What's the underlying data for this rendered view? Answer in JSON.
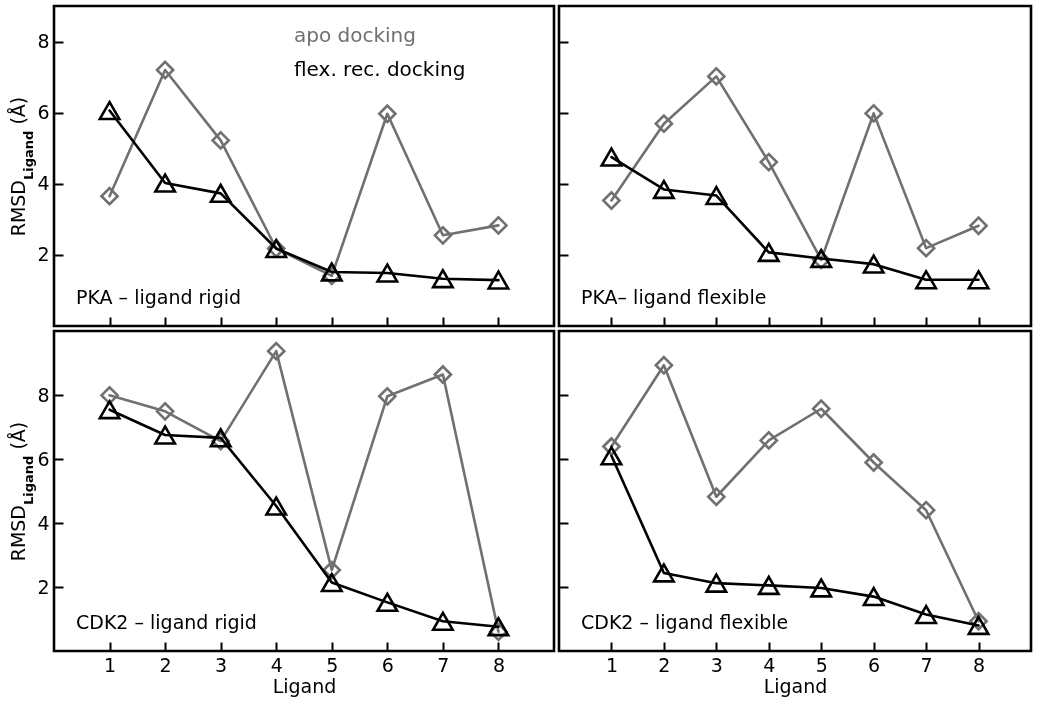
{
  "chart_data": [
    {
      "type": "line",
      "title": "PKA – ligand rigid",
      "ylabel": "RMSD$_{Ligand}$ (Å)",
      "x": [
        1,
        2,
        3,
        4,
        5,
        6,
        7,
        8
      ],
      "xlim": [
        0,
        9
      ],
      "ylim": [
        0,
        9
      ],
      "xticks": [
        1,
        2,
        3,
        4,
        5,
        6,
        7,
        8
      ],
      "yticks": [
        2,
        4,
        6,
        8
      ],
      "tick_labels": "y",
      "legend": "top right",
      "series": [
        {
          "name": "apo docking",
          "color": "#707070",
          "marker": "diamond",
          "values": [
            3.65,
            7.2,
            5.22,
            2.18,
            1.41,
            5.97,
            2.55,
            2.83
          ]
        },
        {
          "name": "flex. rec. docking",
          "color": "#000000",
          "marker": "triangle",
          "values": [
            6.06,
            4.02,
            3.73,
            2.18,
            1.52,
            1.49,
            1.33,
            1.29
          ]
        }
      ]
    },
    {
      "type": "line",
      "title": "PKA– ligand flexible",
      "x": [
        1,
        2,
        3,
        4,
        5,
        6,
        7,
        8
      ],
      "xlim": [
        0,
        9
      ],
      "ylim": [
        0,
        9
      ],
      "xticks": [
        1,
        2,
        3,
        4,
        5,
        6,
        7,
        8
      ],
      "yticks": [
        2,
        4,
        6,
        8
      ],
      "tick_labels": false,
      "series": [
        {
          "color": "#707070",
          "marker": "diamond",
          "values": [
            3.53,
            5.69,
            7.02,
            4.61,
            1.86,
            5.98,
            2.19,
            2.82
          ]
        },
        {
          "color": "#000000",
          "marker": "triangle",
          "values": [
            4.75,
            3.84,
            3.67,
            2.07,
            1.9,
            1.74,
            1.3,
            1.3
          ]
        }
      ]
    },
    {
      "type": "line",
      "title": "CDK2 – ligand rigid",
      "xlabel": "Ligand",
      "ylabel": "RMSD$_{Ligand}$ (Å)",
      "x": [
        1,
        2,
        3,
        4,
        5,
        6,
        7,
        8
      ],
      "xlim": [
        0,
        9
      ],
      "ylim": [
        0,
        10
      ],
      "xticks": [
        1,
        2,
        3,
        4,
        5,
        6,
        7,
        8
      ],
      "yticks": [
        2,
        4,
        6,
        8
      ],
      "series": [
        {
          "color": "#707070",
          "marker": "diamond",
          "values": [
            7.99,
            7.49,
            6.56,
            9.37,
            2.53,
            7.96,
            8.64,
            0.6
          ]
        },
        {
          "color": "#000000",
          "marker": "triangle",
          "values": [
            7.54,
            6.75,
            6.66,
            4.53,
            2.14,
            1.52,
            0.93,
            0.76
          ]
        }
      ]
    },
    {
      "type": "line",
      "title": "CDK2 – ligand flexible",
      "xlabel": "Ligand",
      "x": [
        1,
        2,
        3,
        4,
        5,
        6,
        7,
        8
      ],
      "xlim": [
        0,
        9
      ],
      "ylim": [
        0,
        10
      ],
      "xticks": [
        1,
        2,
        3,
        4,
        5,
        6,
        7,
        8
      ],
      "yticks": [
        2,
        4,
        6,
        8
      ],
      "tick_labels": "x",
      "series": [
        {
          "color": "#707070",
          "marker": "diamond",
          "values": [
            6.39,
            8.93,
            4.82,
            6.58,
            7.57,
            5.89,
            4.4,
            0.93
          ]
        },
        {
          "color": "#000000",
          "marker": "triangle",
          "values": [
            6.1,
            2.44,
            2.12,
            2.05,
            1.97,
            1.7,
            1.14,
            0.8
          ]
        }
      ]
    }
  ]
}
